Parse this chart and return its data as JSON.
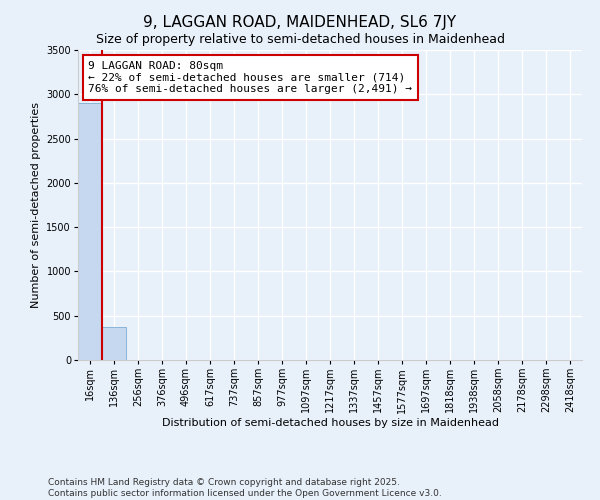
{
  "title": "9, LAGGAN ROAD, MAIDENHEAD, SL6 7JY",
  "subtitle": "Size of property relative to semi-detached houses in Maidenhead",
  "xlabel": "Distribution of semi-detached houses by size in Maidenhead",
  "ylabel": "Number of semi-detached properties",
  "categories": [
    "16sqm",
    "136sqm",
    "256sqm",
    "376sqm",
    "496sqm",
    "617sqm",
    "737sqm",
    "857sqm",
    "977sqm",
    "1097sqm",
    "1217sqm",
    "1337sqm",
    "1457sqm",
    "1577sqm",
    "1697sqm",
    "1818sqm",
    "1938sqm",
    "2058sqm",
    "2178sqm",
    "2298sqm",
    "2418sqm"
  ],
  "values": [
    2900,
    375,
    0,
    0,
    0,
    0,
    0,
    0,
    0,
    0,
    0,
    0,
    0,
    0,
    0,
    0,
    0,
    0,
    0,
    0,
    0
  ],
  "bar_color": "#c5d8f0",
  "bar_edge_color": "#8ab4d8",
  "ylim": [
    0,
    3500
  ],
  "property_line_x": 0.5,
  "property_line_color": "#cc0000",
  "annotation_line1": "9 LAGGAN ROAD: 80sqm",
  "annotation_line2": "← 22% of semi-detached houses are smaller (714)",
  "annotation_line3": "76% of semi-detached houses are larger (2,491) →",
  "annotation_box_color": "#cc0000",
  "background_color": "#e8f0fa",
  "footer_text": "Contains HM Land Registry data © Crown copyright and database right 2025.\nContains public sector information licensed under the Open Government Licence v3.0.",
  "title_fontsize": 11,
  "subtitle_fontsize": 9,
  "ylabel_fontsize": 8,
  "xlabel_fontsize": 8,
  "tick_fontsize": 7,
  "annotation_fontsize": 8,
  "footer_fontsize": 6.5
}
